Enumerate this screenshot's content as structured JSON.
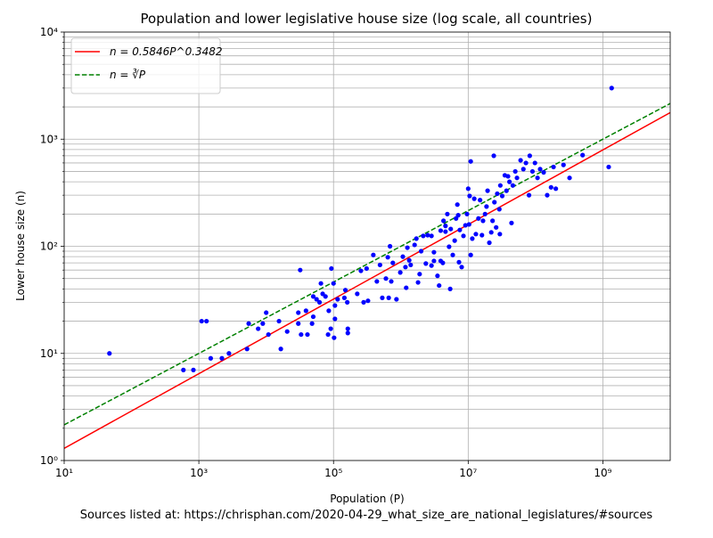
{
  "chart_data": {
    "type": "scatter",
    "title": "Population and lower legislative house size (log scale, all countries)",
    "xlabel": "Population (P)",
    "ylabel": "Lower house size (n)",
    "footnote": "Sources listed at: https://chrisphan.com/2020-04-29_what_size_are_national_legislatures/#sources",
    "xscale": "log",
    "yscale": "log",
    "xlim": [
      10,
      10000000000
    ],
    "ylim": [
      1,
      10000
    ],
    "xticks": [
      {
        "value": 10,
        "label": "10¹"
      },
      {
        "value": 1000,
        "label": "10³"
      },
      {
        "value": 100000,
        "label": "10⁵"
      },
      {
        "value": 10000000,
        "label": "10⁷"
      },
      {
        "value": 1000000000,
        "label": "10⁹"
      }
    ],
    "yticks": [
      {
        "value": 1,
        "label": "10⁰"
      },
      {
        "value": 10,
        "label": "10¹"
      },
      {
        "value": 100,
        "label": "10²"
      },
      {
        "value": 1000,
        "label": "10³"
      },
      {
        "value": 10000,
        "label": "10⁴"
      }
    ],
    "yminorticks": [
      2,
      3,
      4,
      5,
      6,
      7,
      8,
      9,
      20,
      30,
      40,
      50,
      60,
      70,
      80,
      90,
      200,
      300,
      400,
      500,
      600,
      700,
      800,
      900,
      2000,
      3000,
      4000,
      5000,
      6000,
      7000,
      8000,
      9000
    ],
    "grid": true,
    "legend": "upper left",
    "series": [
      {
        "name": "n = 0.5846P^0.3482",
        "type": "line",
        "color": "#ff0000",
        "dash": "solid",
        "x": [
          10,
          10000000000
        ],
        "values": [
          1.3,
          1770
        ]
      },
      {
        "name": "n = ∛P",
        "type": "line",
        "color": "#008000",
        "dash": "dashed",
        "x": [
          10,
          10000000000
        ],
        "values": [
          2.154,
          2154
        ]
      },
      {
        "type": "scatter",
        "color": "#0000ff",
        "x": [
          47,
          590,
          830,
          1100,
          1300,
          1500,
          2200,
          2800,
          5200,
          5500,
          7600,
          8900,
          10000,
          10800,
          15500,
          16500,
          20500,
          30000,
          30000,
          32000,
          33000,
          39000,
          41000,
          48000,
          50000,
          50000,
          56000,
          62000,
          65000,
          69000,
          76000,
          83000,
          85000,
          91000,
          93000,
          100000,
          102000,
          105000,
          105000,
          115000,
          145000,
          160000,
          163000,
          163000,
          150000,
          225000,
          255000,
          280000,
          310000,
          325000,
          390000,
          440000,
          490000,
          530000,
          600000,
          640000,
          660000,
          690000,
          720000,
          760000,
          860000,
          980000,
          1070000,
          1170000,
          1200000,
          1250000,
          1330000,
          1400000,
          1600000,
          1700000,
          1800000,
          1900000,
          2000000,
          2150000,
          2350000,
          2500000,
          2850000,
          2850000,
          3100000,
          3100000,
          3500000,
          3700000,
          3900000,
          4200000,
          4300000,
          4600000,
          4600000,
          4900000,
          5200000,
          5400000,
          5500000,
          5900000,
          6300000,
          6600000,
          6900000,
          7100000,
          7300000,
          7500000,
          8000000,
          8500000,
          9100000,
          9600000,
          10000000,
          10300000,
          10500000,
          10900000,
          10900000,
          11500000,
          12300000,
          13000000,
          14200000,
          15000000,
          16000000,
          16600000,
          17800000,
          18700000,
          19400000,
          20600000,
          22000000,
          23000000,
          24000000,
          24500000,
          26000000,
          27000000,
          29000000,
          29500000,
          30000000,
          32000000,
          35000000,
          37000000,
          39000000,
          41000000,
          44000000,
          46000000,
          50000000,
          53000000,
          60000000,
          66000000,
          72000000,
          80000000,
          82000000,
          90000000,
          98000000,
          107000000,
          117000000,
          132000000,
          149000000,
          170000000,
          185000000,
          200000000,
          260000000,
          320000000,
          500000000,
          1220000000,
          1350000000,
          3900000
        ],
        "values": [
          10,
          7,
          7,
          20,
          20,
          9,
          9,
          10,
          11,
          19,
          17,
          19,
          24,
          15,
          20,
          11,
          16,
          19,
          24,
          60,
          15,
          25,
          15,
          19,
          22,
          34,
          32,
          30,
          45,
          36,
          34,
          15,
          25,
          17,
          62,
          45,
          14,
          28,
          21,
          32,
          33,
          30,
          17,
          15.5,
          39,
          36,
          59,
          30,
          62,
          31,
          83,
          47,
          67,
          33,
          50,
          79,
          33,
          100,
          47,
          70,
          32,
          57,
          80,
          64,
          41,
          97,
          74,
          67,
          103,
          118,
          46,
          55,
          90,
          125,
          69,
          127,
          125,
          66,
          73,
          88,
          53,
          43,
          73,
          70,
          173,
          137,
          155,
          200,
          99,
          40,
          145,
          83,
          113,
          182,
          245,
          195,
          71,
          142,
          64,
          125,
          157,
          200,
          345,
          160,
          295,
          620,
          83,
          118,
          278,
          130,
          182,
          270,
          127,
          173,
          200,
          235,
          330,
          108,
          135,
          173,
          700,
          258,
          150,
          310,
          222,
          130,
          370,
          295,
          460,
          330,
          450,
          400,
          165,
          370,
          500,
          435,
          635,
          525,
          600,
          300,
          700,
          500,
          600,
          435,
          525,
          490,
          300,
          355,
          550,
          345,
          575,
          435,
          710,
          550,
          3000,
          140
        ]
      }
    ]
  }
}
